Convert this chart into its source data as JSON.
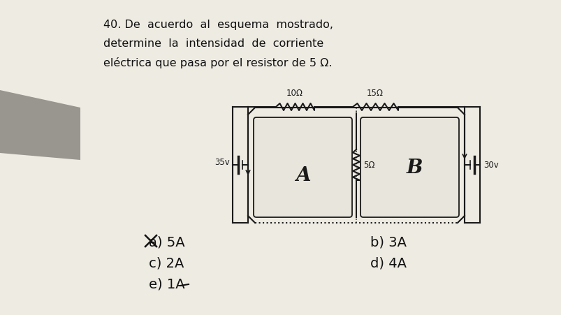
{
  "page_bg": "#eeebe3",
  "left_shadow_color": "#c5c0b8",
  "gray_bar_color": "#8a8680",
  "title_line1": "40. De  acuerdo  al  esquema  mostrado,",
  "title_line2": "determine  la  intensidad  de  corriente",
  "title_line3": "eléctrica que pasa por el resistor de 5 Ω.",
  "answer_a": "a) 5A",
  "answer_b": "b) 3A",
  "answer_c": "c) 2A",
  "answer_d": "d) 4A",
  "answer_e": "e) 1A",
  "label_35v": "35v",
  "label_30v": "30v",
  "label_10ohm": "10Ω",
  "label_15ohm": "15Ω",
  "label_5ohm": "5Ω",
  "label_A": "A",
  "label_B": "B",
  "circuit_color": "#1a1a1a",
  "text_color": "#111111",
  "circuit_bg": "#e8e5dc"
}
